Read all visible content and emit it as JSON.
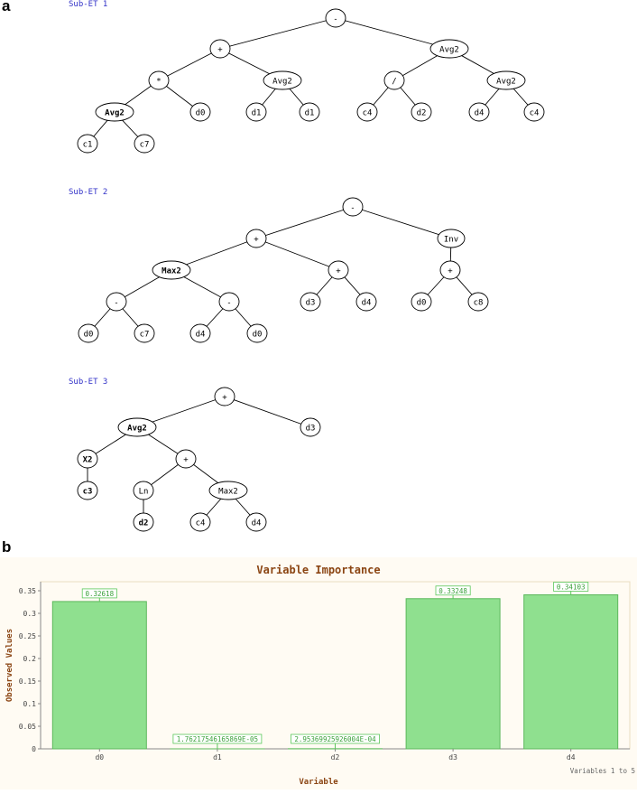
{
  "panel_a": {
    "label": "a"
  },
  "panel_b": {
    "label": "b"
  },
  "trees": [
    {
      "title": "Sub-ET 1",
      "nodes": [
        {
          "id": "n0",
          "label": "-",
          "bold": false,
          "children": [
            "n1",
            "n2"
          ]
        },
        {
          "id": "n1",
          "label": "+",
          "bold": false,
          "children": [
            "n3",
            "n4"
          ]
        },
        {
          "id": "n2",
          "label": "Avg2",
          "bold": false,
          "children": [
            "n5",
            "n6"
          ]
        },
        {
          "id": "n3",
          "label": "*",
          "bold": false,
          "children": [
            "n7",
            "n8"
          ]
        },
        {
          "id": "n4",
          "label": "Avg2",
          "bold": false,
          "children": [
            "n9",
            "n10"
          ]
        },
        {
          "id": "n5",
          "label": "/",
          "bold": false,
          "children": [
            "n11",
            "n12"
          ]
        },
        {
          "id": "n6",
          "label": "Avg2",
          "bold": false,
          "children": [
            "n13",
            "n14"
          ]
        },
        {
          "id": "n7",
          "label": "Avg2",
          "bold": true,
          "children": [
            "n15",
            "n16"
          ]
        },
        {
          "id": "n8",
          "label": "d0",
          "bold": false,
          "children": []
        },
        {
          "id": "n9",
          "label": "d1",
          "bold": false,
          "children": []
        },
        {
          "id": "n10",
          "label": "d1",
          "bold": false,
          "children": []
        },
        {
          "id": "n11",
          "label": "c4",
          "bold": false,
          "children": []
        },
        {
          "id": "n12",
          "label": "d2",
          "bold": false,
          "children": []
        },
        {
          "id": "n13",
          "label": "d4",
          "bold": false,
          "children": []
        },
        {
          "id": "n14",
          "label": "c4",
          "bold": false,
          "children": []
        },
        {
          "id": "n15",
          "label": "c1",
          "bold": false,
          "children": []
        },
        {
          "id": "n16",
          "label": "c7",
          "bold": false,
          "children": []
        }
      ]
    },
    {
      "title": "Sub-ET 2",
      "nodes": [
        {
          "id": "m0",
          "label": "-",
          "bold": false,
          "children": [
            "m1",
            "m2"
          ]
        },
        {
          "id": "m1",
          "label": "+",
          "bold": false,
          "children": [
            "m3",
            "m4"
          ]
        },
        {
          "id": "m2",
          "label": "Inv",
          "bold": false,
          "children": [
            "m5"
          ]
        },
        {
          "id": "m3",
          "label": "Max2",
          "bold": true,
          "children": [
            "m6",
            "m7"
          ]
        },
        {
          "id": "m4",
          "label": "+",
          "bold": false,
          "children": [
            "m8",
            "m9"
          ]
        },
        {
          "id": "m5",
          "label": "+",
          "bold": false,
          "children": [
            "m10",
            "m11"
          ]
        },
        {
          "id": "m6",
          "label": "-",
          "bold": false,
          "children": [
            "m12",
            "m13"
          ]
        },
        {
          "id": "m7",
          "label": "-",
          "bold": false,
          "children": [
            "m14",
            "m15"
          ]
        },
        {
          "id": "m8",
          "label": "d3",
          "bold": false,
          "children": []
        },
        {
          "id": "m9",
          "label": "d4",
          "bold": false,
          "children": []
        },
        {
          "id": "m10",
          "label": "d0",
          "bold": false,
          "children": []
        },
        {
          "id": "m11",
          "label": "c8",
          "bold": false,
          "children": []
        },
        {
          "id": "m12",
          "label": "d0",
          "bold": false,
          "children": []
        },
        {
          "id": "m13",
          "label": "c7",
          "bold": false,
          "children": []
        },
        {
          "id": "m14",
          "label": "d4",
          "bold": false,
          "children": []
        },
        {
          "id": "m15",
          "label": "d0",
          "bold": false,
          "children": []
        }
      ]
    },
    {
      "title": "Sub-ET 3",
      "nodes": [
        {
          "id": "k0",
          "label": "+",
          "bold": false,
          "children": [
            "k1",
            "k2"
          ]
        },
        {
          "id": "k1",
          "label": "Avg2",
          "bold": true,
          "children": [
            "k3",
            "k4"
          ]
        },
        {
          "id": "k2",
          "label": "d3",
          "bold": false,
          "children": []
        },
        {
          "id": "k3",
          "label": "X2",
          "bold": true,
          "children": [
            "k5"
          ]
        },
        {
          "id": "k4",
          "label": "+",
          "bold": false,
          "children": [
            "k6",
            "k7"
          ]
        },
        {
          "id": "k5",
          "label": "c3",
          "bold": true,
          "children": []
        },
        {
          "id": "k6",
          "label": "Ln",
          "bold": false,
          "children": [
            "k8"
          ]
        },
        {
          "id": "k7",
          "label": "Max2",
          "bold": false,
          "children": [
            "k9",
            "k10"
          ]
        },
        {
          "id": "k8",
          "label": "d2",
          "bold": true,
          "children": []
        },
        {
          "id": "k9",
          "label": "c4",
          "bold": false,
          "children": []
        },
        {
          "id": "k10",
          "label": "d4",
          "bold": false,
          "children": []
        }
      ]
    }
  ],
  "chart_data": {
    "type": "bar",
    "title": "Variable Importance",
    "xlabel": "Variable",
    "ylabel": "Observed Values",
    "categories": [
      "d0",
      "d1",
      "d2",
      "d3",
      "d4"
    ],
    "values": [
      0.32618,
      1.76217546165869e-05,
      0.000295369925926004,
      0.33248,
      0.34103
    ],
    "data_labels": [
      "0.32618",
      "1.76217546165869E-05",
      "2.95369925926004E-04",
      "0.33248",
      "0.34103"
    ],
    "ylim": [
      0,
      0.37
    ],
    "yticks": [
      "0",
      "0.05",
      "0.1",
      "0.15",
      "0.2",
      "0.25",
      "0.3",
      "0.35"
    ],
    "ytick_values": [
      0,
      0.05,
      0.1,
      0.15,
      0.2,
      0.25,
      0.3,
      0.35
    ],
    "footer": "Variables 1 to 5",
    "colors": {
      "bar_fill": "#8fe08f",
      "bar_stroke": "#5cb85c",
      "title": "#8b4513",
      "label_border": "#5cc85c",
      "label_text": "#3aa03a",
      "background": "#fffbf3"
    }
  }
}
